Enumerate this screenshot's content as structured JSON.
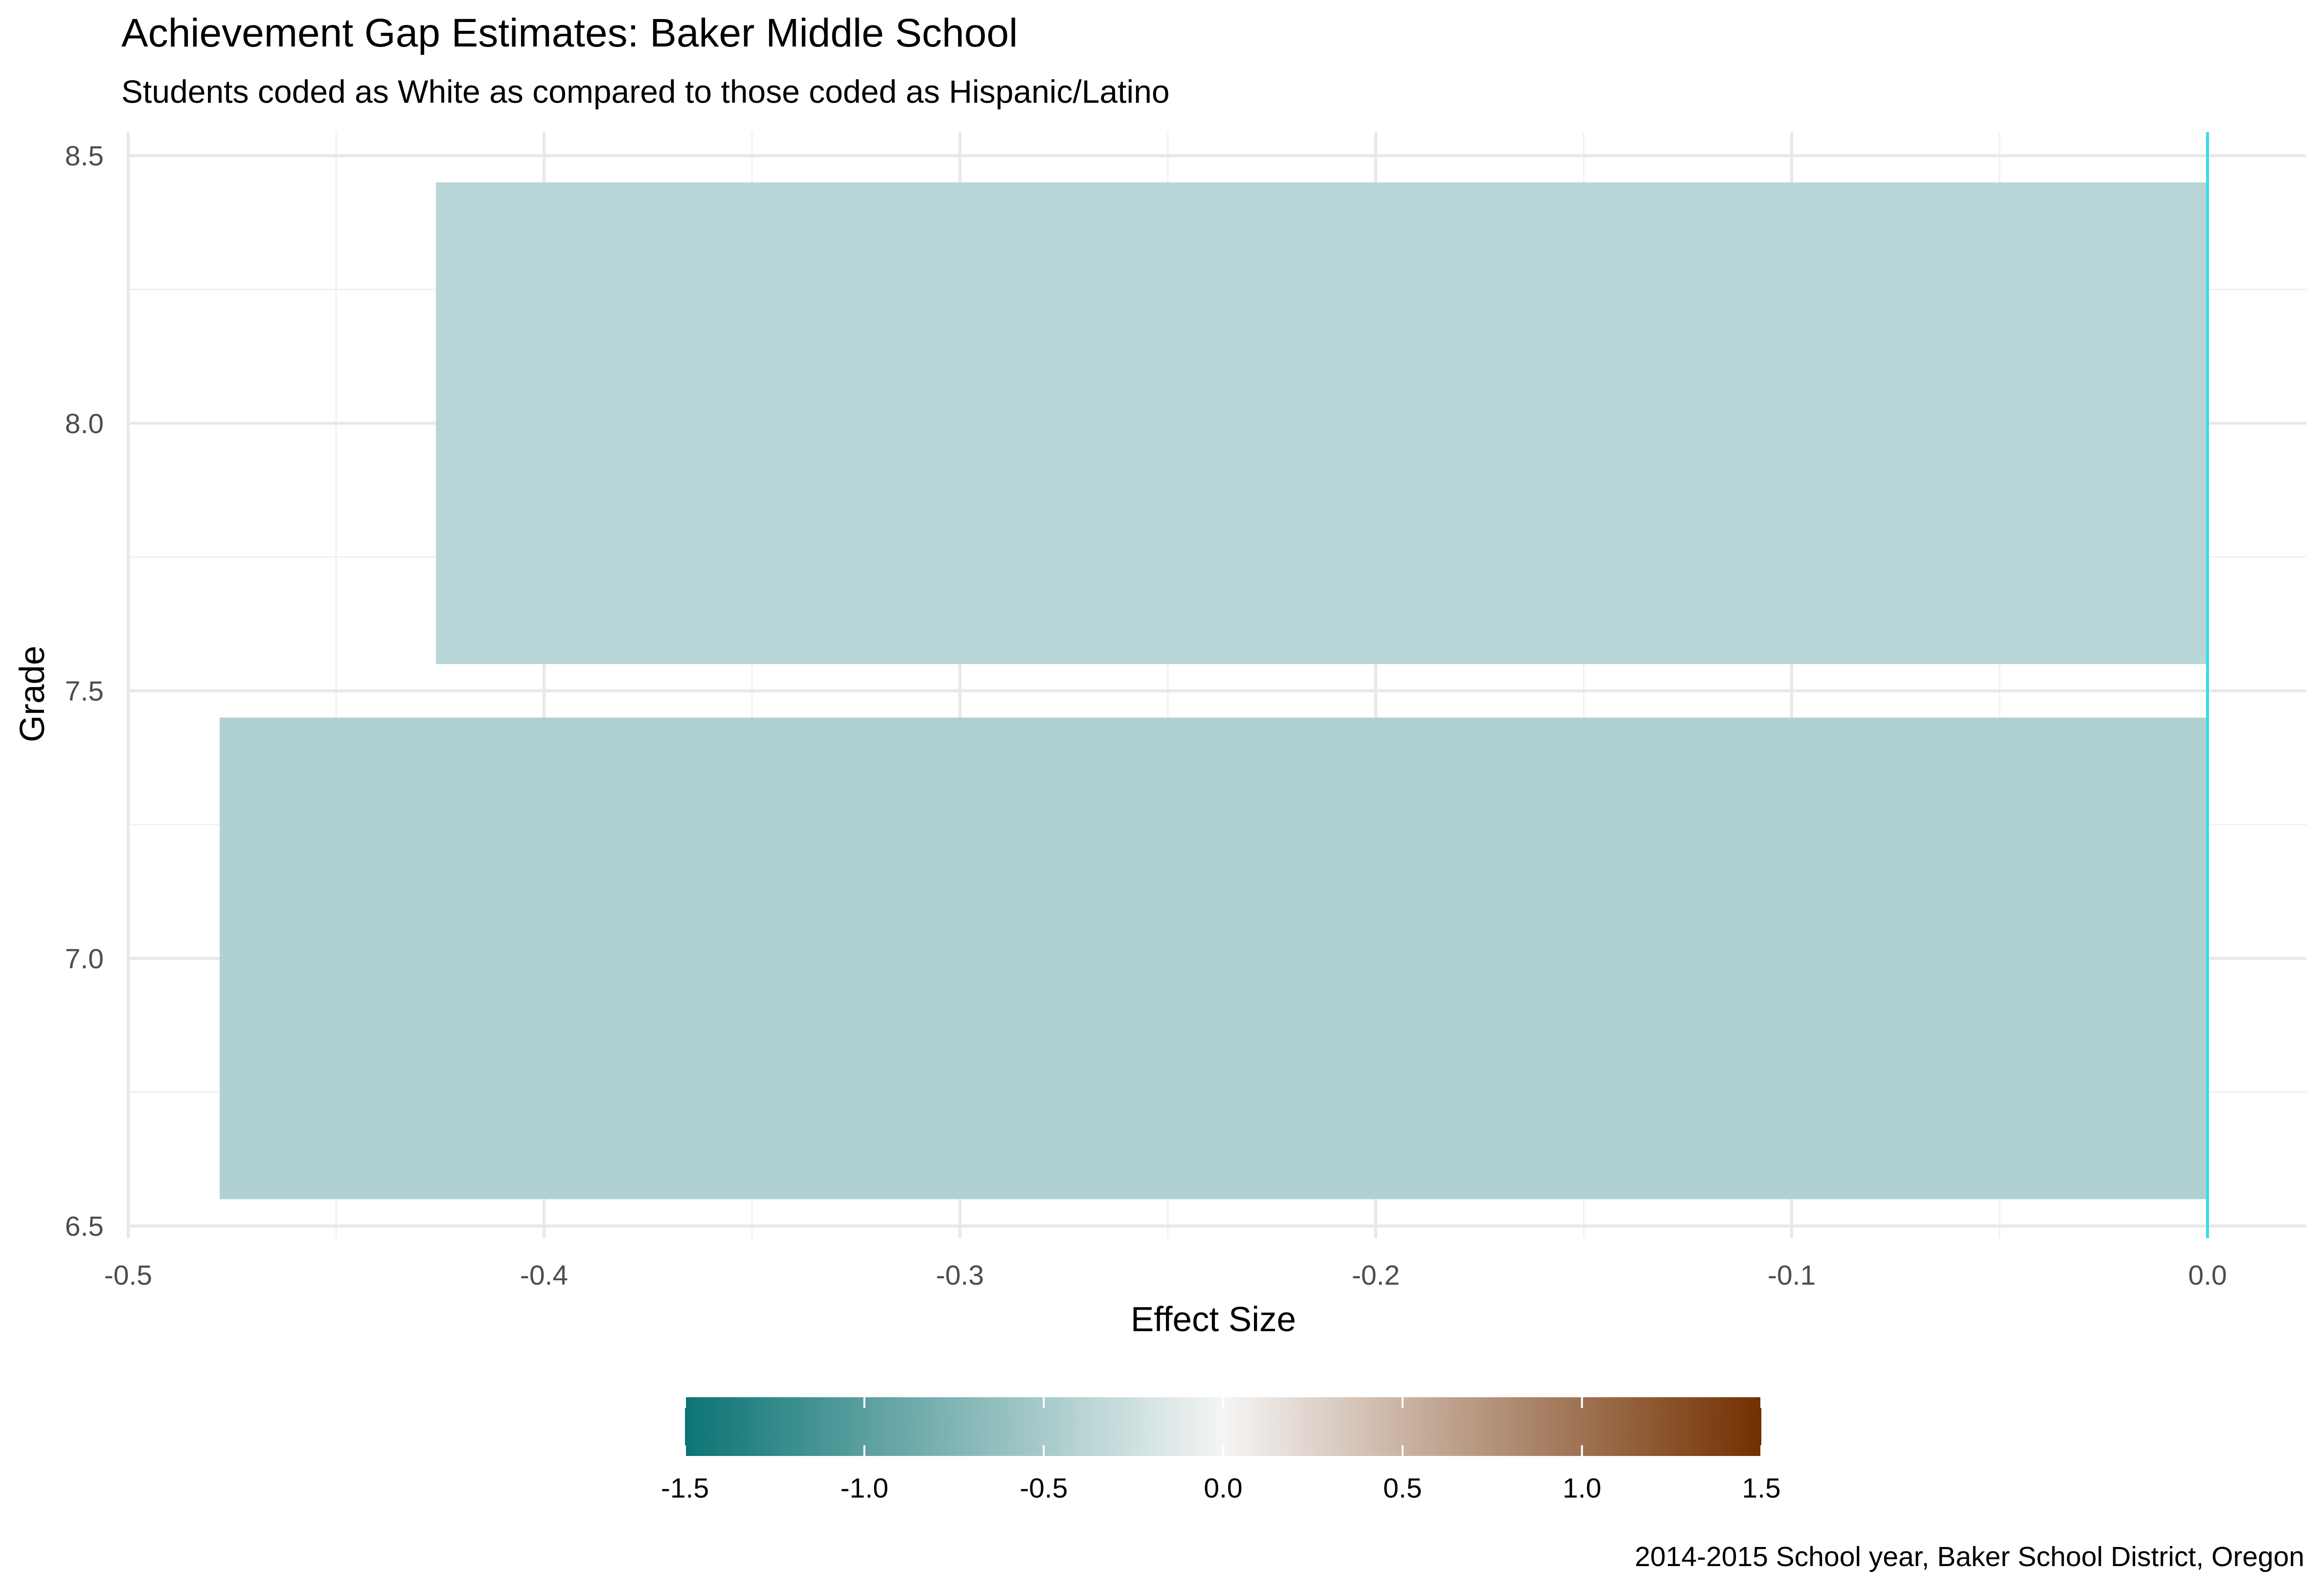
{
  "chart_data": {
    "type": "bar",
    "orientation": "horizontal",
    "title": "Achievement Gap Estimates: Baker Middle School",
    "subtitle": "Students coded as White as compared to those coded as Hispanic/Latino",
    "xlabel": "Effect Size",
    "ylabel": "Grade",
    "caption": "2014-2015 School year, Baker School District, Oregon",
    "xlim": [
      -0.5,
      0.0
    ],
    "ylim": [
      6.5,
      8.5
    ],
    "x_ticks": [
      -0.5,
      -0.4,
      -0.3,
      -0.2,
      -0.1,
      0.0
    ],
    "x_tick_labels": [
      "-0.5",
      "-0.4",
      "-0.3",
      "-0.2",
      "-0.1",
      "0.0"
    ],
    "y_ticks": [
      6.5,
      7.0,
      7.5,
      8.0,
      8.5
    ],
    "y_tick_labels": [
      "6.5",
      "7.0",
      "7.5",
      "8.0",
      "8.5"
    ],
    "grid": true,
    "bars": [
      {
        "grade": 7,
        "value": -0.478,
        "color": "#b0d1d2"
      },
      {
        "grade": 8,
        "value": -0.426,
        "color": "#b8d6d7"
      }
    ],
    "reference_line": {
      "x": 0.0,
      "color": "#35dde8"
    },
    "legend": {
      "type": "colorbar",
      "position": "bottom",
      "range": [
        -1.5,
        1.5
      ],
      "ticks": [
        -1.5,
        -1.0,
        -0.5,
        0.0,
        0.5,
        1.0,
        1.5
      ],
      "tick_labels": [
        "-1.5",
        "-1.0",
        "-0.5",
        "0.0",
        "0.5",
        "1.0",
        "1.5"
      ],
      "colors": [
        "#0c7474",
        "#f5f5f5",
        "#733000"
      ]
    }
  }
}
